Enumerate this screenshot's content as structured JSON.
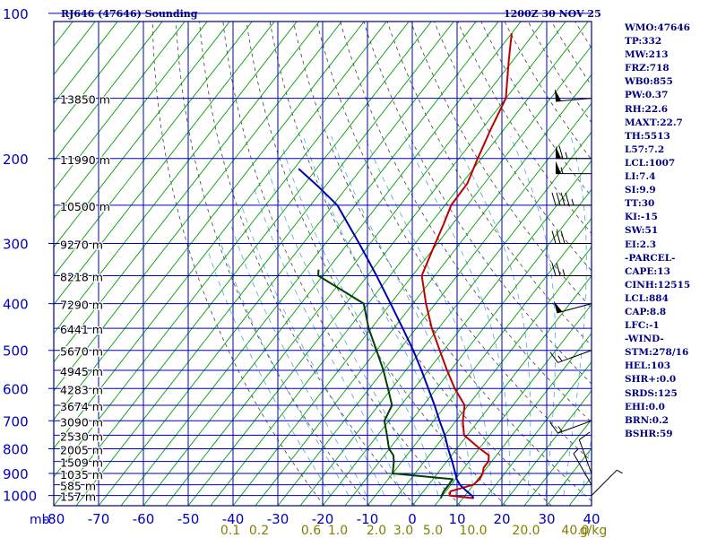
{
  "chart_data": {
    "type": "line",
    "title": "RJ646 (47646) Sounding",
    "datetime": "1200Z 30 NOV 25",
    "y_axis": {
      "unit": "mb",
      "scale": "log",
      "ticks": [
        100,
        200,
        300,
        400,
        500,
        600,
        700,
        800,
        900,
        1000
      ],
      "ylim": [
        100,
        1050
      ]
    },
    "x_axis": {
      "unit": "°C",
      "ticks": [
        -80,
        -70,
        -60,
        -50,
        -40,
        -30,
        -20,
        -10,
        0,
        10,
        20,
        30,
        40
      ],
      "tick_labels": [
        "-80",
        "-70",
        "-60",
        "-50",
        "-40",
        "-30",
        "-20",
        "-10",
        "0",
        "10",
        "20",
        "30",
        "40"
      ],
      "xlim": [
        -80,
        40
      ]
    },
    "mixing_ratio_axis": {
      "unit": "g/kg",
      "ticks": [
        0.1,
        0.2,
        0.6,
        1.0,
        2.0,
        3.0,
        5.0,
        10.0,
        20.0,
        40.0
      ],
      "labels": [
        "0.1",
        "0.2",
        "0.6",
        "1.0",
        "2.0",
        "3.0",
        "5.0",
        "10.0",
        "20.0",
        "40.0"
      ]
    },
    "height_levels": [
      {
        "p": 1000,
        "label": "157 m"
      },
      {
        "p": 950,
        "label": "585 m"
      },
      {
        "p": 900,
        "label": "1035 m"
      },
      {
        "p": 850,
        "label": "1509 m"
      },
      {
        "p": 800,
        "label": "2005 m"
      },
      {
        "p": 750,
        "label": "2530 m"
      },
      {
        "p": 700,
        "label": "3090 m"
      },
      {
        "p": 650,
        "label": "3674 m"
      },
      {
        "p": 600,
        "label": "4283 m"
      },
      {
        "p": 550,
        "label": "4945 m"
      },
      {
        "p": 500,
        "label": "5670 m"
      },
      {
        "p": 450,
        "label": "6441 m"
      },
      {
        "p": 400,
        "label": "7290 m"
      },
      {
        "p": 350,
        "label": "8218 m"
      },
      {
        "p": 300,
        "label": "9270 m"
      },
      {
        "p": 250,
        "label": "10500 m"
      },
      {
        "p": 200,
        "label": "11990 m"
      },
      {
        "p": 150,
        "label": "13850 m"
      }
    ],
    "series": [
      {
        "color": "#c00000",
        "points": [
          [
            1013,
            12.4
          ],
          [
            1000,
            6.5
          ],
          [
            980,
            6.0
          ],
          [
            950,
            10.0
          ],
          [
            925,
            10.4
          ],
          [
            900,
            10.1
          ],
          [
            875,
            9.3
          ],
          [
            850,
            9.3
          ],
          [
            825,
            8.3
          ],
          [
            800,
            5.2
          ],
          [
            750,
            -0.7
          ],
          [
            700,
            -3.5
          ],
          [
            650,
            -5.8
          ],
          [
            600,
            -10.9
          ],
          [
            550,
            -15.8
          ],
          [
            500,
            -20.9
          ],
          [
            450,
            -26.5
          ],
          [
            400,
            -32.1
          ],
          [
            350,
            -37.9
          ],
          [
            300,
            -40.5
          ],
          [
            275,
            -41.9
          ],
          [
            250,
            -43.6
          ],
          [
            225,
            -43.8
          ],
          [
            200,
            -45.8
          ],
          [
            175,
            -47.9
          ],
          [
            150,
            -50.0
          ],
          [
            125,
            -56.0
          ],
          [
            110,
            -60.0
          ]
        ]
      },
      {
        "color": "#004000",
        "points": [
          [
            1013,
            5.1
          ],
          [
            1000,
            4.8
          ],
          [
            980,
            4.5
          ],
          [
            950,
            4.5
          ],
          [
            925,
            4.4
          ],
          [
            900,
            -10.0
          ],
          [
            850,
            -11.8
          ],
          [
            825,
            -13.0
          ],
          [
            800,
            -15.1
          ],
          [
            750,
            -17.9
          ],
          [
            700,
            -21.0
          ],
          [
            650,
            -22.0
          ],
          [
            600,
            -25.8
          ],
          [
            550,
            -30.0
          ],
          [
            500,
            -35.0
          ],
          [
            450,
            -40.6
          ],
          [
            400,
            -46.0
          ],
          [
            350,
            -61.0
          ],
          [
            340,
            -62.0
          ]
        ]
      },
      {
        "color": "#0000b0",
        "points": [
          [
            1013,
            12.4
          ],
          [
            1000,
            11.5
          ],
          [
            975,
            9.2
          ],
          [
            950,
            7.0
          ],
          [
            925,
            5.3
          ],
          [
            900,
            4.0
          ],
          [
            850,
            1.2
          ],
          [
            800,
            -1.9
          ],
          [
            750,
            -5.0
          ],
          [
            700,
            -8.7
          ],
          [
            650,
            -12.5
          ],
          [
            600,
            -16.8
          ],
          [
            550,
            -21.5
          ],
          [
            500,
            -26.8
          ],
          [
            450,
            -33.0
          ],
          [
            400,
            -40.0
          ],
          [
            350,
            -48.0
          ],
          [
            300,
            -57.5
          ],
          [
            250,
            -69.0
          ],
          [
            230,
            -76.0
          ],
          [
            210,
            -84.0
          ]
        ]
      }
    ],
    "winds": [
      {
        "p": 1000,
        "dir": 45,
        "spd": 5
      },
      {
        "p": 950,
        "dir": 330,
        "spd": 5
      },
      {
        "p": 900,
        "dir": 340,
        "spd": 10
      },
      {
        "p": 700,
        "dir": 250,
        "spd": 15
      },
      {
        "p": 500,
        "dir": 250,
        "spd": 15
      },
      {
        "p": 400,
        "dir": 255,
        "spd": 50
      },
      {
        "p": 350,
        "dir": 270,
        "spd": 25
      },
      {
        "p": 300,
        "dir": 270,
        "spd": 30
      },
      {
        "p": 250,
        "dir": 270,
        "spd": 45
      },
      {
        "p": 215,
        "dir": 270,
        "spd": 55
      },
      {
        "p": 200,
        "dir": 270,
        "spd": 65
      },
      {
        "p": 150,
        "dir": 265,
        "spd": 50
      }
    ]
  },
  "panel": [
    "WMO:47646",
    "TP:332",
    "MW:213",
    "FRZ:718",
    "WB0:855",
    "PW:0.37",
    "RH:22.6",
    "MAXT:22.7",
    "TH:5513",
    "L57:7.2",
    "LCL:1007",
    "LI:7.4",
    "SI:9.9",
    "TT:30",
    "KI:-15",
    "SW:51",
    "EI:2.3",
    "-PARCEL-",
    "CAPE:13",
    "CINH:12515",
    "LCL:884",
    "CAP:8.8",
    "LFC:-1",
    "-WIND-",
    "STM:278/16",
    "HEL:103",
    "SHR+:0.0",
    "SRDS:125",
    "EHI:0.0",
    "BRN:0.2",
    "BSHR:59"
  ],
  "colors": {
    "frame": "#000080",
    "grid": "#0000c0",
    "isotherm": "#00a000",
    "dry_adiabat": "#404040",
    "moist_adiabat": "#4aa8d8",
    "axis_text": "#0000c0",
    "mixing_text": "#808000"
  }
}
